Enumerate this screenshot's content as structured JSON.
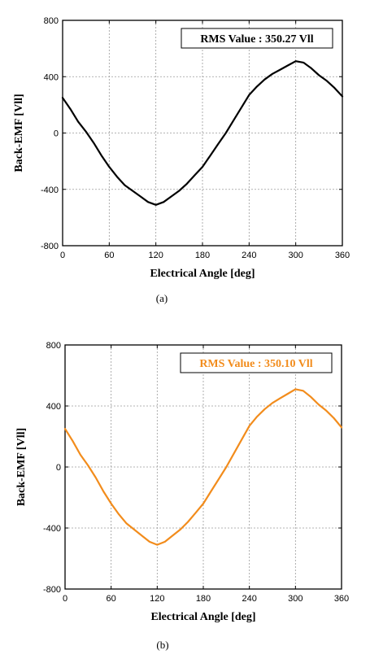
{
  "chart_data": [
    {
      "type": "line",
      "caption": "(a)",
      "xlabel": "Electrical Angle [deg]",
      "ylabel": "Back-EMF [Vll]",
      "xlim": [
        0,
        360
      ],
      "ylim": [
        -800,
        800
      ],
      "xticks": [
        0,
        60,
        120,
        180,
        240,
        300,
        360
      ],
      "yticks": [
        -800,
        -400,
        0,
        400,
        800
      ],
      "grid": true,
      "annotation": "RMS Value : 350.27 Vll",
      "annotation_placement": "top-right",
      "line_color": "#000000",
      "x": [
        0,
        10,
        20,
        30,
        40,
        50,
        60,
        70,
        80,
        90,
        100,
        110,
        120,
        130,
        140,
        150,
        160,
        170,
        180,
        190,
        200,
        210,
        220,
        230,
        240,
        250,
        260,
        270,
        280,
        290,
        300,
        310,
        320,
        330,
        340,
        350,
        360
      ],
      "y": [
        250,
        170,
        80,
        10,
        -70,
        -160,
        -240,
        -310,
        -370,
        -410,
        -450,
        -490,
        -510,
        -490,
        -450,
        -410,
        -360,
        -300,
        -240,
        -160,
        -80,
        0,
        90,
        180,
        270,
        330,
        380,
        420,
        450,
        480,
        510,
        500,
        460,
        410,
        370,
        320,
        260
      ]
    },
    {
      "type": "line",
      "caption": "(b)",
      "xlabel": "Electrical Angle [deg]",
      "ylabel": "Back-EMF [Vll]",
      "xlim": [
        0,
        360
      ],
      "ylim": [
        -800,
        800
      ],
      "xticks": [
        0,
        60,
        120,
        180,
        240,
        300,
        360
      ],
      "yticks": [
        -800,
        -400,
        0,
        400,
        800
      ],
      "grid": true,
      "annotation": "RMS Value : 350.10 Vll",
      "annotation_placement": "top-right",
      "line_color": "#f28c1c",
      "x": [
        0,
        10,
        20,
        30,
        40,
        50,
        60,
        70,
        80,
        90,
        100,
        110,
        120,
        130,
        140,
        150,
        160,
        170,
        180,
        190,
        200,
        210,
        220,
        230,
        240,
        250,
        260,
        270,
        280,
        290,
        300,
        310,
        320,
        330,
        340,
        350,
        360
      ],
      "y": [
        250,
        170,
        80,
        10,
        -70,
        -160,
        -240,
        -310,
        -370,
        -410,
        -450,
        -490,
        -510,
        -490,
        -450,
        -410,
        -360,
        -300,
        -240,
        -160,
        -80,
        0,
        90,
        180,
        270,
        330,
        380,
        420,
        450,
        480,
        510,
        500,
        460,
        410,
        370,
        320,
        260
      ]
    }
  ]
}
